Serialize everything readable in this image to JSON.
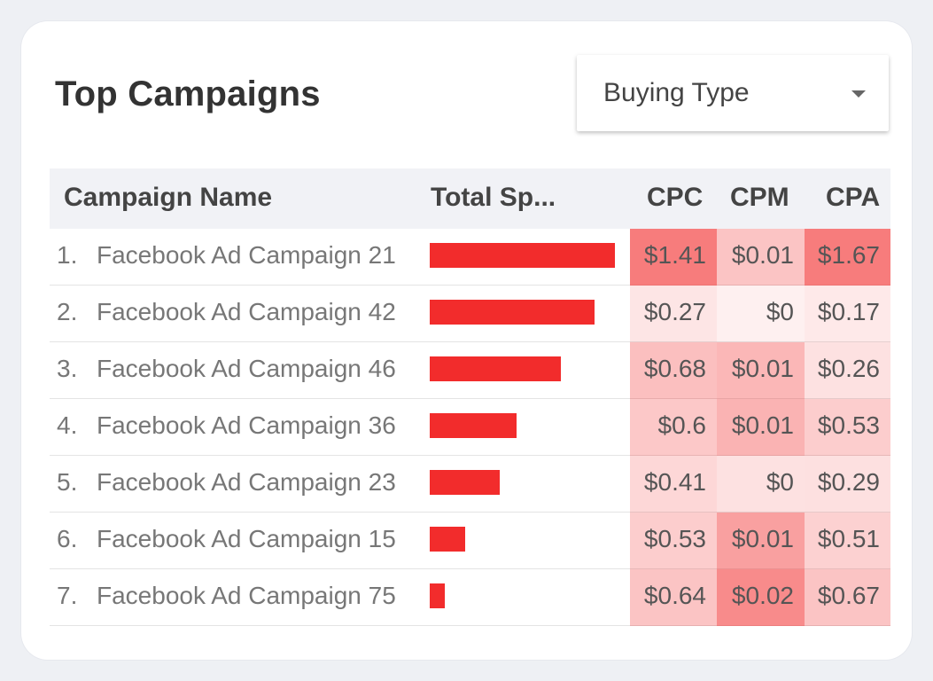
{
  "title": "Top Campaigns",
  "dropdown": {
    "label": "Buying Type"
  },
  "table": {
    "headers": {
      "name": "Campaign Name",
      "spend": "Total Sp...",
      "cpc": "CPC",
      "cpm": "CPM",
      "cpa": "CPA"
    },
    "colors": {
      "bar": "#f22c2c",
      "heat_base": "#f22c2c"
    },
    "rows": [
      {
        "index": "1.",
        "name": "Facebook Ad Campaign 21",
        "spend_fraction": 1.0,
        "cpc": "$1.41",
        "cpm": "$0.01",
        "cpa": "$1.67",
        "cpc_heat": 0.62,
        "cpm_heat": 0.28,
        "cpa_heat": 0.62
      },
      {
        "index": "2.",
        "name": "Facebook Ad Campaign 42",
        "spend_fraction": 0.89,
        "cpc": "$0.27",
        "cpm": "$0",
        "cpa": "$0.17",
        "cpc_heat": 0.12,
        "cpm_heat": 0.07,
        "cpa_heat": 0.1
      },
      {
        "index": "3.",
        "name": "Facebook Ad Campaign 46",
        "spend_fraction": 0.71,
        "cpc": "$0.68",
        "cpm": "$0.01",
        "cpa": "$0.26",
        "cpc_heat": 0.3,
        "cpm_heat": 0.34,
        "cpa_heat": 0.14
      },
      {
        "index": "4.",
        "name": "Facebook Ad Campaign 36",
        "spend_fraction": 0.47,
        "cpc": "$0.6",
        "cpm": "$0.01",
        "cpa": "$0.53",
        "cpc_heat": 0.26,
        "cpm_heat": 0.36,
        "cpa_heat": 0.24
      },
      {
        "index": "5.",
        "name": "Facebook Ad Campaign 23",
        "spend_fraction": 0.38,
        "cpc": "$0.41",
        "cpm": "$0",
        "cpa": "$0.29",
        "cpc_heat": 0.19,
        "cpm_heat": 0.14,
        "cpa_heat": 0.15
      },
      {
        "index": "6.",
        "name": "Facebook Ad Campaign 15",
        "spend_fraction": 0.19,
        "cpc": "$0.53",
        "cpm": "$0.01",
        "cpa": "$0.51",
        "cpc_heat": 0.24,
        "cpm_heat": 0.45,
        "cpa_heat": 0.22
      },
      {
        "index": "7.",
        "name": "Facebook Ad Campaign 75",
        "spend_fraction": 0.08,
        "cpc": "$0.64",
        "cpm": "$0.02",
        "cpa": "$0.67",
        "cpc_heat": 0.28,
        "cpm_heat": 0.55,
        "cpa_heat": 0.28
      }
    ]
  }
}
